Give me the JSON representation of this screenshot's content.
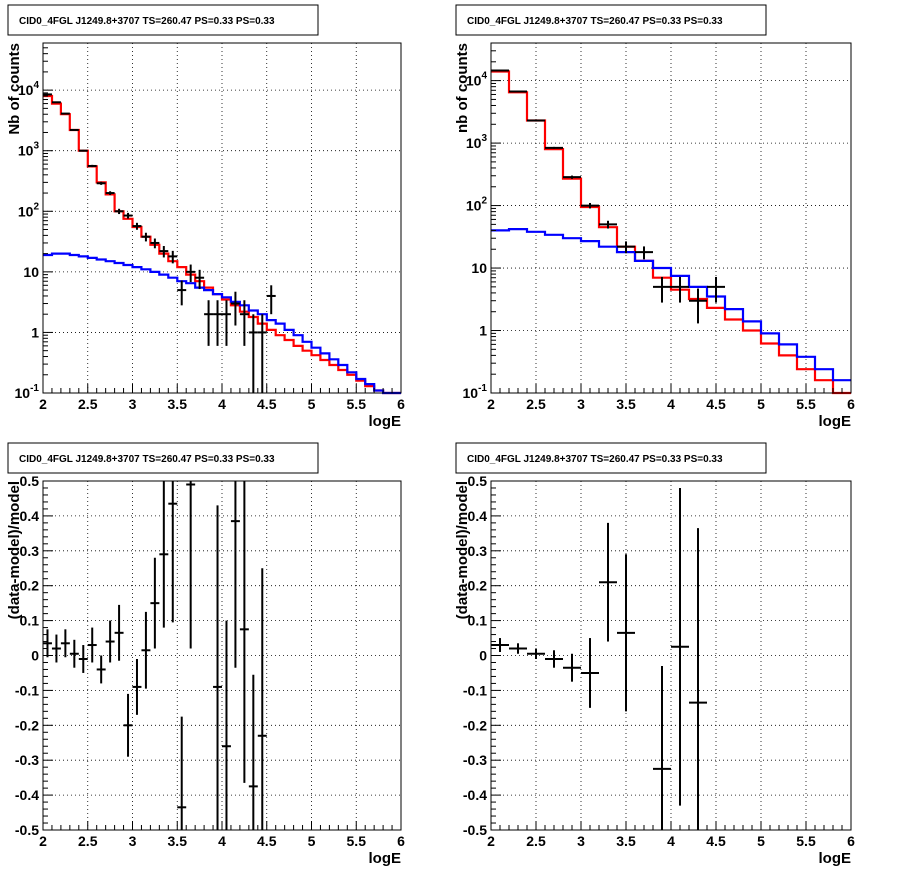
{
  "chart_data": [
    {
      "id": "tl",
      "type": "line",
      "title": "CID0_4FGL J1249.8+3707 TS=260.47 PS=0.33 PS=0.33",
      "xlabel": "logE",
      "ylabel": "Nb of counts",
      "xlim": [
        2,
        6
      ],
      "ylim": [
        0.1,
        60000
      ],
      "yscale": "log",
      "grid": true,
      "x_ticks": [
        "2",
        "2.5",
        "3",
        "3.5",
        "4",
        "4.5",
        "5",
        "5.5",
        "6"
      ],
      "y_ticks": [
        {
          "v": 0.1,
          "b": "10",
          "e": "-1"
        },
        {
          "v": 1,
          "b": "1",
          "e": ""
        },
        {
          "v": 10,
          "b": "10",
          "e": ""
        },
        {
          "v": 100,
          "b": "10",
          "e": "2"
        },
        {
          "v": 1000,
          "b": "10",
          "e": "3"
        },
        {
          "v": 10000,
          "b": "10",
          "e": "4"
        }
      ],
      "bin_edges": [
        2.0,
        2.1,
        2.2,
        2.3,
        2.4,
        2.5,
        2.6,
        2.7,
        2.8,
        2.9,
        3.0,
        3.1,
        3.2,
        3.3,
        3.4,
        3.5,
        3.6,
        3.7,
        3.8,
        3.9,
        4.0,
        4.1,
        4.2,
        4.3,
        4.4,
        4.5,
        4.6,
        4.7,
        4.8,
        4.9,
        5.0,
        5.1,
        5.2,
        5.3,
        5.4,
        5.5,
        5.6,
        5.7,
        5.8,
        5.9,
        6.0
      ],
      "series": [
        {
          "color": "#ff0000",
          "kind": "step",
          "values": [
            8000,
            6000,
            4000,
            2200,
            1000,
            550,
            300,
            190,
            100,
            75,
            55,
            38,
            28,
            20,
            15,
            12,
            9,
            7,
            5.5,
            4.3,
            3.5,
            2.8,
            2.2,
            1.8,
            1.4,
            1.1,
            0.9,
            0.75,
            0.6,
            0.5,
            0.42,
            0.35,
            0.29,
            0.24,
            0.2,
            0.16,
            0.13,
            0.11,
            0.1,
            0.1
          ]
        },
        {
          "color": "#0000ff",
          "kind": "step",
          "values": [
            19,
            20,
            20,
            19,
            18,
            17,
            16,
            15,
            14,
            13,
            12,
            11,
            10,
            9,
            8,
            7,
            6.5,
            5.5,
            5,
            4.3,
            3.8,
            3.2,
            2.8,
            2.3,
            2.0,
            1.6,
            1.4,
            1.1,
            0.9,
            0.7,
            0.56,
            0.45,
            0.36,
            0.29,
            0.22,
            0.17,
            0.14,
            0.11,
            0.1,
            0.1
          ]
        },
        {
          "color": "#000000",
          "kind": "points",
          "x": [
            2.05,
            2.15,
            2.25,
            2.35,
            2.45,
            2.55,
            2.65,
            2.75,
            2.85,
            2.95,
            3.05,
            3.15,
            3.25,
            3.35,
            3.45,
            3.55,
            3.65,
            3.75,
            3.85,
            3.95,
            4.05,
            4.15,
            4.25,
            4.35,
            4.45,
            4.55
          ],
          "y": [
            8500,
            6300,
            4100,
            2200,
            1000,
            560,
            290,
            200,
            100,
            85,
            57,
            38,
            30,
            22,
            18,
            5,
            10,
            8,
            2,
            2,
            2,
            3,
            2,
            1,
            1,
            4
          ],
          "yerr": [
            92,
            79,
            64,
            47,
            32,
            24,
            17,
            14,
            10,
            9.2,
            7.5,
            6.2,
            5.5,
            4.7,
            4.2,
            2.2,
            3.2,
            2.8,
            1.4,
            1.4,
            1.4,
            1.7,
            1.4,
            1,
            1,
            2
          ]
        }
      ]
    },
    {
      "id": "tr",
      "type": "line",
      "title": "CID0_4FGL J1249.8+3707 TS=260.47 PS=0.33 PS=0.33",
      "xlabel": "logE",
      "ylabel": "nb of counts",
      "xlim": [
        2,
        6
      ],
      "ylim": [
        0.1,
        40000
      ],
      "yscale": "log",
      "grid": true,
      "x_ticks": [
        "2",
        "2.5",
        "3",
        "3.5",
        "4",
        "4.5",
        "5",
        "5.5",
        "6"
      ],
      "y_ticks": [
        {
          "v": 0.1,
          "b": "10",
          "e": "-1"
        },
        {
          "v": 1,
          "b": "1",
          "e": ""
        },
        {
          "v": 10,
          "b": "10",
          "e": ""
        },
        {
          "v": 100,
          "b": "10",
          "e": "2"
        },
        {
          "v": 1000,
          "b": "10",
          "e": "3"
        },
        {
          "v": 10000,
          "b": "10",
          "e": "4"
        }
      ],
      "bin_edges": [
        2.0,
        2.2,
        2.4,
        2.6,
        2.8,
        3.0,
        3.2,
        3.4,
        3.6,
        3.8,
        4.0,
        4.2,
        4.4,
        4.6,
        4.8,
        5.0,
        5.2,
        5.4,
        5.6,
        5.8,
        6.0
      ],
      "series": [
        {
          "color": "#ff0000",
          "kind": "step",
          "values": [
            14000,
            6500,
            2300,
            800,
            270,
            95,
            45,
            22,
            13,
            7,
            4.5,
            3.2,
            2.3,
            1.5,
            1.0,
            0.62,
            0.4,
            0.24,
            0.16,
            0.1
          ]
        },
        {
          "color": "#0000ff",
          "kind": "step",
          "values": [
            40,
            42,
            38,
            34,
            30,
            27,
            22,
            18,
            13,
            10,
            7.5,
            5,
            3.5,
            2.2,
            1.4,
            0.9,
            0.6,
            0.38,
            0.24,
            0.16
          ]
        },
        {
          "color": "#000000",
          "kind": "points",
          "x": [
            2.1,
            2.3,
            2.5,
            2.7,
            2.9,
            3.1,
            3.3,
            3.5,
            3.7,
            3.9,
            4.1,
            4.3,
            4.5
          ],
          "y": [
            14500,
            6700,
            2300,
            840,
            285,
            100,
            50,
            22,
            18,
            5,
            5,
            3,
            5
          ],
          "yerr": [
            120,
            82,
            48,
            29,
            17,
            10,
            7.1,
            4.7,
            4.2,
            2.2,
            2.2,
            1.7,
            2.2
          ]
        }
      ]
    },
    {
      "id": "bl",
      "type": "scatter",
      "title": "CID0_4FGL J1249.8+3707 TS=260.47 PS=0.33 PS=0.33",
      "xlabel": "logE",
      "ylabel": "(data-model)/model",
      "xlim": [
        2,
        6
      ],
      "ylim": [
        -0.5,
        0.5
      ],
      "yscale": "linear",
      "grid": true,
      "x_ticks": [
        "2",
        "2.5",
        "3",
        "3.5",
        "4",
        "4.5",
        "5",
        "5.5",
        "6"
      ],
      "y_ticks": [
        "-0.5",
        "-0.4",
        "-0.3",
        "-0.2",
        "-0.1",
        "0",
        "0.1",
        "0.2",
        "0.3",
        "0.4",
        "0.5"
      ],
      "series": [
        {
          "color": "#000000",
          "kind": "points",
          "xhalf": 0.05,
          "x": [
            2.05,
            2.15,
            2.25,
            2.35,
            2.45,
            2.55,
            2.65,
            2.75,
            2.85,
            2.95,
            3.05,
            3.15,
            3.25,
            3.35,
            3.45,
            3.55,
            3.65,
            3.95,
            4.05,
            4.15,
            4.25,
            4.35,
            4.45
          ],
          "y": [
            0.035,
            0.02,
            0.035,
            0.005,
            -0.01,
            0.03,
            -0.04,
            0.04,
            0.065,
            -0.2,
            -0.09,
            0.015,
            0.15,
            0.29,
            0.435,
            -0.435,
            0.49,
            -0.09,
            -0.26,
            0.385,
            0.075,
            -0.375,
            -0.23
          ],
          "yerr": [
            0.04,
            0.04,
            0.04,
            0.04,
            0.04,
            0.05,
            0.04,
            0.06,
            0.08,
            0.09,
            0.08,
            0.11,
            0.13,
            0.21,
            0.34,
            0.26,
            0.47,
            0.52,
            0.36,
            0.42,
            0.44,
            0.32,
            0.48
          ]
        }
      ]
    },
    {
      "id": "br",
      "type": "scatter",
      "title": "CID0_4FGL J1249.8+3707 TS=260.47 PS=0.33 PS=0.33",
      "xlabel": "logE",
      "ylabel": "(data-model)/model",
      "xlim": [
        2,
        6
      ],
      "ylim": [
        -0.5,
        0.5
      ],
      "yscale": "linear",
      "grid": true,
      "x_ticks": [
        "2",
        "2.5",
        "3",
        "3.5",
        "4",
        "4.5",
        "5",
        "5.5",
        "6"
      ],
      "y_ticks": [
        "-0.5",
        "-0.4",
        "-0.3",
        "-0.2",
        "-0.1",
        "0",
        "0.1",
        "0.2",
        "0.3",
        "0.4",
        "0.5"
      ],
      "series": [
        {
          "color": "#000000",
          "kind": "points",
          "xhalf": 0.1,
          "x": [
            2.1,
            2.3,
            2.5,
            2.7,
            2.9,
            3.1,
            3.3,
            3.5,
            3.9,
            4.1,
            4.3
          ],
          "y": [
            0.03,
            0.02,
            0.005,
            -0.01,
            -0.035,
            -0.05,
            0.21,
            0.065,
            -0.325,
            0.025,
            -0.135
          ],
          "yerr": [
            0.02,
            0.015,
            0.015,
            0.025,
            0.04,
            0.1,
            0.17,
            0.225,
            0.295,
            0.455,
            0.5
          ]
        }
      ]
    }
  ]
}
